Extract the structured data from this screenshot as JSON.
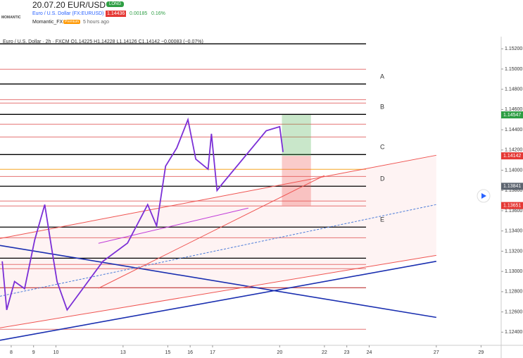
{
  "header": {
    "logo": "MOMANTIC",
    "title": "20.07.20 EUR/USD",
    "badge": "LONG",
    "symbol": "Euro / U.S. Dollar (FX:EURUSD)",
    "price": "1.14436",
    "change": "0.00185",
    "change_pct": "0.16%",
    "author": "Momantic_FX",
    "author_tag": "Premium",
    "time": "5 hours ago"
  },
  "chart_data": {
    "type": "line",
    "legend_text": "Euro / U.S. Dollar · 2h · FXCM  O1.14225 H1.14228 L1.14126 C1.14142 −0.00083 (−0.07%)",
    "xlim": [
      7.5,
      29.9
    ],
    "ylim": [
      1.1227,
      1.1532
    ],
    "xticks": [
      8,
      9,
      10,
      13,
      15,
      16,
      17,
      20,
      22,
      23,
      24,
      27,
      29
    ],
    "yticks": [
      {
        "value": 1.124,
        "label": "1.12400"
      },
      {
        "value": 1.126,
        "label": "1.12600"
      },
      {
        "value": 1.128,
        "label": "1.12800"
      },
      {
        "value": 1.13,
        "label": "1.13000"
      },
      {
        "value": 1.132,
        "label": "1.13200"
      },
      {
        "value": 1.134,
        "label": "1.13400"
      },
      {
        "value": 1.136,
        "label": "1.13600"
      },
      {
        "value": 1.138,
        "label": "1.13800"
      },
      {
        "value": 1.14,
        "label": "1.14000"
      },
      {
        "value": 1.142,
        "label": "1.14200"
      },
      {
        "value": 1.144,
        "label": "1.14400"
      },
      {
        "value": 1.146,
        "label": "1.14600"
      },
      {
        "value": 1.148,
        "label": "1.14800"
      },
      {
        "value": 1.15,
        "label": "1.15000"
      },
      {
        "value": 1.152,
        "label": "1.15200"
      }
    ],
    "series": [
      {
        "name": "EUR/USD",
        "color": "#7b2fd6",
        "x": [
          7.6,
          7.8,
          8.15,
          8.6,
          9.05,
          9.5,
          9.8,
          10.05,
          10.5,
          12.1,
          13.2,
          14.1,
          14.5,
          14.9,
          15.4,
          15.9,
          16.25,
          16.8,
          16.95,
          17.2,
          17.45,
          19.4,
          20.0,
          20.15
        ],
        "values": [
          1.131,
          1.1262,
          1.129,
          1.1283,
          1.1331,
          1.1366,
          1.1324,
          1.129,
          1.1262,
          1.131,
          1.1328,
          1.1366,
          1.1345,
          1.1404,
          1.1422,
          1.145,
          1.1411,
          1.1401,
          1.1436,
          1.138,
          1.1387,
          1.1439,
          1.1443,
          1.1418
        ]
      }
    ],
    "levels": [
      {
        "value": 1.15249,
        "color": "#000000"
      },
      {
        "value": 1.14852,
        "color": "#000000"
      },
      {
        "value": 1.14552,
        "color": "#000000"
      },
      {
        "value": 1.14155,
        "color": "#000000"
      },
      {
        "value": 1.13842,
        "color": "#000000"
      },
      {
        "value": 1.13438,
        "color": "#000000"
      },
      {
        "value": 1.13131,
        "color": "#000000"
      },
      {
        "value": 1.12839,
        "color": "#b71c1c"
      },
      {
        "value": 1.12428,
        "color": "#e57373"
      },
      {
        "value": 1.14998,
        "color": "#e57373"
      },
      {
        "value": 1.14698,
        "color": "#e57373"
      },
      {
        "value": 1.14664,
        "color": "#e57373"
      },
      {
        "value": 1.14455,
        "color": "#e57373"
      },
      {
        "value": 1.14329,
        "color": "#e57373"
      },
      {
        "value": 1.14009,
        "color": "#f5a623"
      },
      {
        "value": 1.13939,
        "color": "#e57373"
      },
      {
        "value": 1.13696,
        "color": "#e57373"
      },
      {
        "value": 1.13647,
        "color": "#e57373"
      },
      {
        "value": 1.13333,
        "color": "#e57373"
      },
      {
        "value": 1.13069,
        "color": "#e57373"
      },
      {
        "value": 1.13027,
        "color": "#e57373"
      }
    ],
    "trendlines": [
      {
        "x": [
          7.5,
          27
        ],
        "values": [
          1.1232,
          1.131
        ],
        "color": "#1a2fb0"
      },
      {
        "x": [
          7.5,
          27
        ],
        "values": [
          1.13257,
          1.12546
        ],
        "color": "#1a2fb0"
      },
      {
        "x": [
          7.5,
          27
        ],
        "values": [
          1.13326,
          1.14148
        ],
        "color": "#ef5350"
      },
      {
        "x": [
          7.5,
          27
        ],
        "values": [
          1.12442,
          1.13159
        ],
        "color": "#ef5350"
      },
      {
        "x": [
          7.5,
          27
        ],
        "values": [
          1.12755,
          1.13661
        ],
        "color": "#4a7bd8"
      },
      {
        "x": [
          11.9,
          18.6
        ],
        "values": [
          1.13278,
          1.13626
        ],
        "color": "#c03ad8"
      },
      {
        "x": [
          11.9,
          22
        ],
        "values": [
          1.12834,
          1.13948
        ],
        "color": "#ef5350"
      }
    ],
    "position": {
      "x": [
        20.1,
        21.4
      ],
      "entry": 1.14142,
      "target": 1.14547,
      "stop": 1.13651
    },
    "level_labels": [
      {
        "label": "A",
        "value": 1.14852,
        "color": "#000000"
      },
      {
        "label": "B",
        "value": 1.14552,
        "color": "#000000"
      },
      {
        "label": "C",
        "value": 1.14155,
        "color": "#4caf50"
      },
      {
        "label": "D",
        "value": 1.13842,
        "color": "#000000"
      },
      {
        "label": "E",
        "value": 1.13438,
        "color": "#000000"
      }
    ],
    "badges": [
      {
        "value": 1.14547,
        "color": "#2e9e44"
      },
      {
        "value": 1.14142,
        "color": "#e53935"
      },
      {
        "value": 1.13841,
        "color": "#5d6570"
      },
      {
        "value": 1.13651,
        "color": "#e53935"
      }
    ]
  }
}
